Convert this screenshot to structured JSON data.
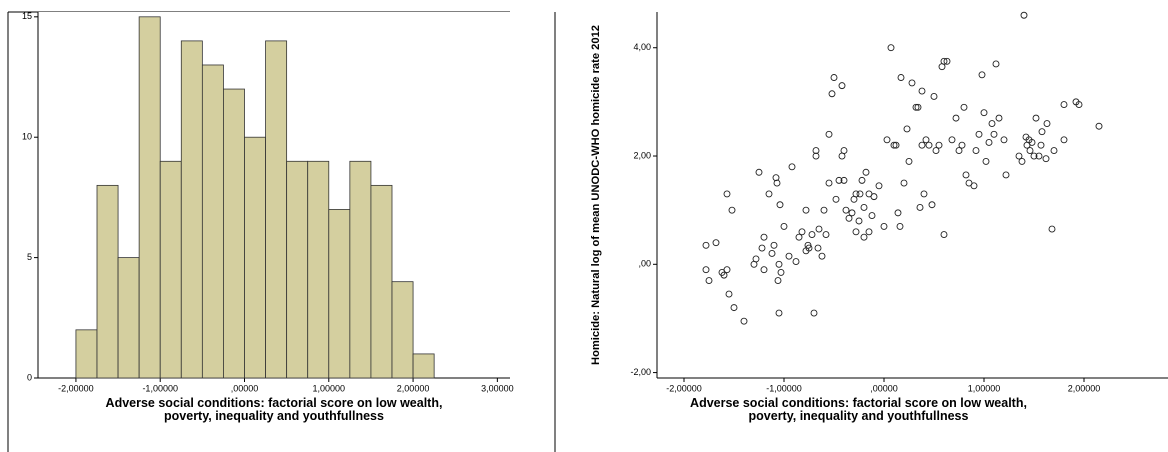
{
  "chart_data": [
    {
      "type": "histogram",
      "x_label": "Adverse social conditions: factorial score on low wealth, poverty, inequality and youthfullness",
      "bins": [
        -2.0,
        -1.75,
        -1.5,
        -1.25,
        -1.0,
        -0.75,
        -0.5,
        -0.25,
        0.0,
        0.25,
        0.5,
        0.75,
        1.0,
        1.25,
        1.5,
        1.75,
        2.0,
        2.25
      ],
      "counts": [
        2,
        8,
        5,
        15,
        9,
        14,
        13,
        12,
        10,
        14,
        9,
        9,
        7,
        9,
        8,
        4,
        1
      ],
      "color": "#d4cf9f",
      "xlim": [
        -2.45,
        3.15
      ],
      "ylim": [
        0,
        15.2
      ],
      "xticks": [
        {
          "value": -2,
          "label": "-2,00000"
        },
        {
          "value": -1,
          "label": "-1,00000"
        },
        {
          "value": 0,
          "label": ",00000"
        },
        {
          "value": 1,
          "label": "1,00000"
        },
        {
          "value": 2,
          "label": "2,00000"
        },
        {
          "value": 3,
          "label": "3,00000"
        }
      ],
      "yticks": [
        0,
        5,
        10,
        15
      ]
    },
    {
      "type": "scatter",
      "x_label": "Adverse social conditions: factorial score on low wealth, poverty, inequality and youthfullness",
      "y_label": "Homicide: Natural log of mean UNODC-WHO homicide rate 2012",
      "x": [
        -1.78,
        -1.78,
        -1.75,
        -1.68,
        -1.62,
        -1.6,
        -1.57,
        -1.57,
        -1.55,
        -1.52,
        -1.5,
        -1.4,
        -1.3,
        -1.28,
        -1.25,
        -1.22,
        -1.2,
        -1.2,
        -1.15,
        -1.12,
        -1.1,
        -1.08,
        -1.07,
        -1.06,
        -1.05,
        -1.05,
        -1.04,
        -1.03,
        -1.0,
        -0.95,
        -0.92,
        -0.88,
        -0.85,
        -0.82,
        -0.78,
        -0.78,
        -0.76,
        -0.75,
        -0.72,
        -0.7,
        -0.68,
        -0.68,
        -0.66,
        -0.65,
        -0.62,
        -0.6,
        -0.58,
        -0.55,
        -0.55,
        -0.52,
        -0.5,
        -0.48,
        -0.45,
        -0.42,
        -0.42,
        -0.4,
        -0.4,
        -0.38,
        -0.35,
        -0.32,
        -0.3,
        -0.28,
        -0.28,
        -0.25,
        -0.24,
        -0.22,
        -0.2,
        -0.2,
        -0.18,
        -0.15,
        -0.15,
        -0.12,
        -0.1,
        -0.05,
        0.0,
        0.03,
        0.07,
        0.1,
        0.12,
        0.14,
        0.16,
        0.17,
        0.2,
        0.23,
        0.25,
        0.28,
        0.32,
        0.34,
        0.36,
        0.38,
        0.38,
        0.4,
        0.42,
        0.45,
        0.48,
        0.5,
        0.52,
        0.55,
        0.58,
        0.6,
        0.63,
        0.6,
        0.68,
        0.72,
        0.75,
        0.78,
        0.8,
        0.82,
        0.85,
        0.9,
        0.92,
        0.95,
        0.98,
        1.0,
        1.02,
        1.05,
        1.08,
        1.1,
        1.12,
        1.15,
        1.2,
        1.22,
        1.35,
        1.38,
        1.4,
        1.42,
        1.43,
        1.45,
        1.46,
        1.48,
        1.5,
        1.52,
        1.55,
        1.57,
        1.58,
        1.62,
        1.63,
        1.68,
        1.7,
        1.8,
        1.8,
        1.92,
        1.95,
        2.15
      ],
      "values": [
        0.35,
        -0.1,
        -0.3,
        0.4,
        -0.15,
        -0.2,
        -0.1,
        1.3,
        -0.55,
        1.0,
        -0.8,
        -1.05,
        0.0,
        0.1,
        1.7,
        0.3,
        0.5,
        -0.1,
        1.3,
        0.2,
        0.35,
        1.6,
        1.5,
        -0.3,
        -0.9,
        0.0,
        1.1,
        -0.15,
        0.7,
        0.15,
        1.8,
        0.05,
        0.5,
        0.6,
        1.0,
        0.25,
        0.35,
        0.3,
        0.55,
        -0.9,
        2.1,
        2.0,
        0.3,
        0.65,
        0.15,
        1.0,
        0.55,
        1.5,
        2.4,
        3.15,
        3.45,
        1.2,
        1.55,
        2.0,
        3.3,
        1.55,
        2.1,
        1.0,
        0.85,
        0.95,
        1.2,
        1.3,
        0.6,
        0.8,
        1.3,
        1.55,
        1.05,
        0.5,
        1.7,
        1.3,
        0.6,
        0.9,
        1.25,
        1.45,
        0.7,
        2.3,
        4.0,
        2.2,
        2.2,
        0.95,
        0.7,
        3.45,
        1.5,
        2.5,
        1.9,
        3.35,
        2.9,
        2.9,
        1.05,
        2.2,
        3.2,
        1.3,
        2.3,
        2.2,
        1.1,
        3.1,
        2.1,
        2.2,
        3.65,
        3.75,
        3.75,
        0.55,
        2.3,
        2.7,
        2.1,
        2.2,
        2.9,
        1.65,
        1.5,
        1.45,
        2.1,
        2.4,
        3.5,
        2.8,
        1.9,
        2.25,
        2.6,
        2.4,
        3.7,
        2.7,
        2.3,
        1.65,
        2.0,
        1.9,
        4.6,
        2.35,
        2.2,
        2.3,
        2.1,
        2.25,
        2.0,
        2.7,
        2.0,
        2.2,
        2.45,
        1.95,
        2.6,
        0.65,
        2.1,
        2.3,
        2.95,
        3.0,
        2.95,
        2.55
      ],
      "xlim": [
        -2.27,
        2.84
      ],
      "ylim": [
        -2.1,
        4.66
      ],
      "xticks": [
        {
          "value": -2,
          "label": "-2,00000"
        },
        {
          "value": -1,
          "label": "-1,00000"
        },
        {
          "value": 0,
          "label": ",00000"
        },
        {
          "value": 1,
          "label": "1,00000"
        },
        {
          "value": 2,
          "label": "2,00000"
        }
      ],
      "yticks": [
        {
          "value": -2,
          "label": "-2,00"
        },
        {
          "value": 0,
          "label": ",00"
        },
        {
          "value": 2,
          "label": "2,00"
        },
        {
          "value": 4,
          "label": "4,00"
        }
      ]
    }
  ]
}
